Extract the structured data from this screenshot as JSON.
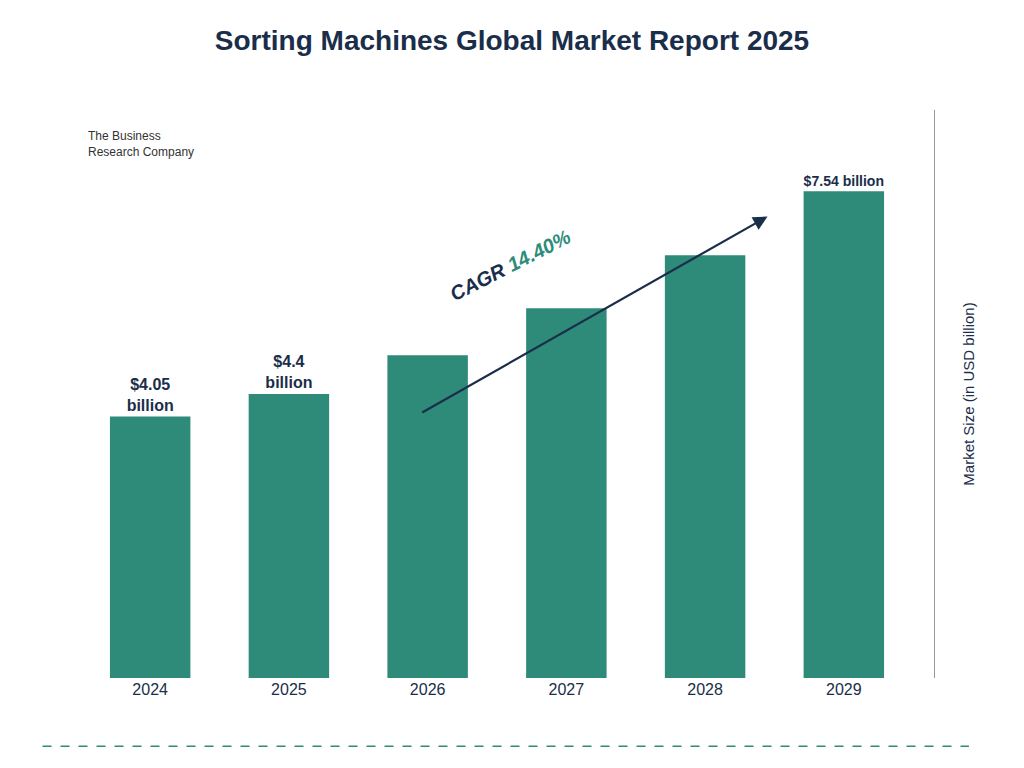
{
  "chart_data": {
    "type": "bar",
    "title": "Sorting Machines Global Market Report 2025",
    "categories": [
      "2024",
      "2025",
      "2026",
      "2027",
      "2028",
      "2029"
    ],
    "values": [
      4.05,
      4.4,
      5.0,
      5.73,
      6.55,
      7.54
    ],
    "color": "#2e8b7a",
    "ylabel": "Market Size (in USD billion)",
    "ylim": [
      0,
      8.8
    ],
    "yticks": [],
    "tick_labels": "x",
    "grid": false,
    "data_labels": true,
    "value_labels": [
      "$4.05\nbillion",
      "$4.4\nbillion",
      null,
      null,
      null,
      "$7.54 billion"
    ],
    "annotations": [
      {
        "text": "CAGR 14.40%"
      },
      {
        "text": "The Business\nResearch Company"
      }
    ]
  }
}
